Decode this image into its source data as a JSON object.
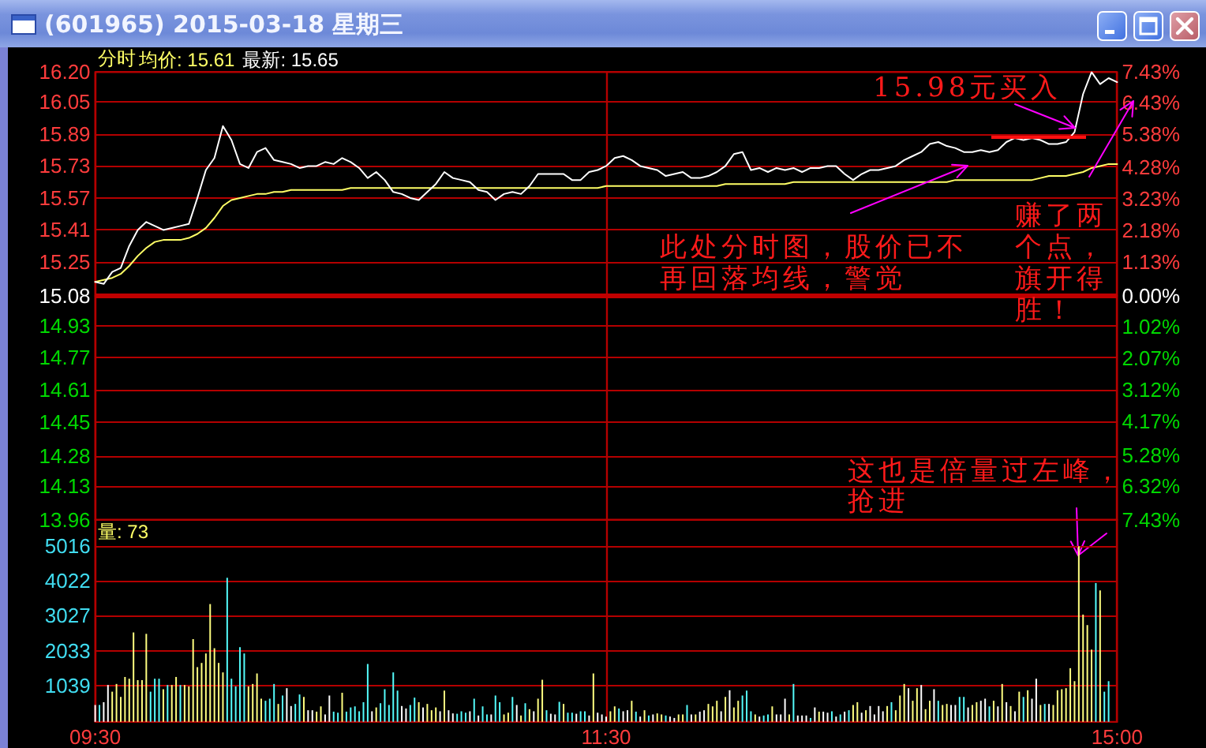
{
  "chart_data": [
    {
      "type": "line",
      "title": "(601965) 2015-03-18 星期三",
      "subtitle": "分时",
      "categories": [
        null,
        null,
        null,
        null,
        null,
        null,
        null,
        null,
        null,
        null,
        null,
        null,
        null,
        null,
        null,
        null,
        null,
        null,
        null,
        null,
        null,
        null,
        null,
        null,
        null,
        null,
        null,
        null,
        null,
        null,
        null,
        null,
        null,
        null,
        null,
        null,
        null,
        null,
        null,
        null,
        null,
        null,
        null,
        null,
        null,
        null,
        null,
        null,
        null,
        null,
        null,
        null,
        null,
        null,
        null,
        null,
        null,
        null,
        null,
        null,
        null,
        null,
        null,
        null,
        null,
        null,
        null,
        null,
        null,
        null,
        null,
        null,
        null,
        null,
        null,
        null,
        null,
        null,
        null,
        null,
        null,
        null,
        null,
        null,
        null,
        null,
        null,
        null,
        null,
        null,
        null,
        null,
        null,
        null,
        null,
        null,
        null,
        null,
        null,
        null,
        null,
        null,
        null,
        null,
        null,
        null,
        null,
        null,
        null,
        null,
        null,
        null,
        null,
        null,
        null,
        null,
        null,
        null,
        null,
        null,
        null
      ],
      "series": [
        {
          "name": "均价: 15.61",
          "color": "#ffff66",
          "values": [
            15.15,
            15.16,
            15.17,
            15.19,
            15.23,
            15.28,
            15.32,
            15.35,
            15.36,
            15.36,
            15.36,
            15.37,
            15.39,
            15.42,
            15.47,
            15.53,
            15.56,
            15.57,
            15.58,
            15.59,
            15.59,
            15.6,
            15.6,
            15.61,
            15.61,
            15.61,
            15.61,
            15.61,
            15.61,
            15.61,
            15.62,
            15.62,
            15.62,
            15.62,
            15.62,
            15.62,
            15.62,
            15.62,
            15.62,
            15.62,
            15.62,
            15.62,
            15.62,
            15.62,
            15.62,
            15.62,
            15.62,
            15.62,
            15.62,
            15.62,
            15.62,
            15.62,
            15.62,
            15.62,
            15.62,
            15.62,
            15.62,
            15.62,
            15.62,
            15.62,
            15.63,
            15.63,
            15.63,
            15.63,
            15.63,
            15.63,
            15.63,
            15.63,
            15.63,
            15.63,
            15.63,
            15.63,
            15.63,
            15.63,
            15.64,
            15.64,
            15.64,
            15.64,
            15.64,
            15.64,
            15.64,
            15.64,
            15.65,
            15.65,
            15.65,
            15.65,
            15.65,
            15.65,
            15.65,
            15.65,
            15.65,
            15.65,
            15.65,
            15.65,
            15.65,
            15.65,
            15.65,
            15.65,
            15.65,
            15.65,
            15.65,
            15.66,
            15.66,
            15.66,
            15.66,
            15.66,
            15.66,
            15.66,
            15.66,
            15.66,
            15.66,
            15.67,
            15.68,
            15.68,
            15.68,
            15.69,
            15.7,
            15.72,
            15.73,
            15.74,
            15.74
          ]
        },
        {
          "name": "最新: 15.65",
          "color": "#ffffff",
          "values": [
            15.15,
            15.14,
            15.2,
            15.22,
            15.33,
            15.41,
            15.45,
            15.43,
            15.41,
            15.42,
            15.43,
            15.44,
            15.57,
            15.71,
            15.77,
            15.93,
            15.86,
            15.74,
            15.72,
            15.8,
            15.82,
            15.76,
            15.75,
            15.74,
            15.72,
            15.73,
            15.73,
            15.75,
            15.74,
            15.77,
            15.75,
            15.72,
            15.67,
            15.7,
            15.66,
            15.6,
            15.59,
            15.57,
            15.56,
            15.6,
            15.64,
            15.7,
            15.67,
            15.66,
            15.65,
            15.61,
            15.6,
            15.56,
            15.59,
            15.6,
            15.59,
            15.63,
            15.69,
            15.69,
            15.69,
            15.69,
            15.66,
            15.66,
            15.7,
            15.71,
            15.73,
            15.77,
            15.78,
            15.76,
            15.73,
            15.72,
            15.71,
            15.68,
            15.69,
            15.7,
            15.67,
            15.67,
            15.68,
            15.7,
            15.73,
            15.79,
            15.8,
            15.71,
            15.72,
            15.7,
            15.72,
            15.71,
            15.72,
            15.7,
            15.72,
            15.72,
            15.73,
            15.73,
            15.69,
            15.66,
            15.69,
            15.71,
            15.71,
            15.72,
            15.73,
            15.76,
            15.78,
            15.8,
            15.84,
            15.85,
            15.83,
            15.82,
            15.8,
            15.8,
            15.81,
            15.8,
            15.81,
            15.85,
            15.87,
            15.86,
            15.87,
            15.86,
            15.84,
            15.84,
            15.85,
            15.9,
            16.09,
            16.2,
            16.14,
            16.17,
            16.15
          ]
        }
      ],
      "ylim": [
        13.96,
        16.2
      ],
      "yticks": [
        13.96,
        14.13,
        14.28,
        14.45,
        14.61,
        14.77,
        14.93,
        15.08,
        15.25,
        15.41,
        15.57,
        15.73,
        15.89,
        16.05,
        {
          "value": 16.2,
          "label": "16.20"
        }
      ],
      "y2lim": [
        -7.43,
        7.43
      ],
      "y2ticks": [
        {
          "value": -7.43,
          "label": "7.43%"
        },
        {
          "value": -6.32,
          "label": "6.32%"
        },
        {
          "value": -5.28,
          "label": "5.28%"
        },
        {
          "value": -4.17,
          "label": "4.17%"
        },
        {
          "value": -3.12,
          "label": "3.12%"
        },
        {
          "value": -2.07,
          "label": "2.07%"
        },
        {
          "value": -1.02,
          "label": "1.02%"
        },
        {
          "value": 0,
          "label": "0.00%"
        },
        {
          "value": 1.13,
          "label": "1.13%"
        },
        {
          "value": 2.18,
          "label": "2.18%"
        },
        {
          "value": 3.23,
          "label": "3.23%"
        },
        {
          "value": 4.28,
          "label": "4.28%"
        },
        {
          "value": 5.38,
          "label": "5.38%"
        },
        {
          "value": 6.43,
          "label": "6.43%"
        },
        {
          "value": 7.43,
          "label": "7.43%"
        }
      ],
      "ref_lines": [
        {
          "axis": "y",
          "value": 15.08,
          "color": "#c00000"
        }
      ],
      "grid": true,
      "legend": "top left",
      "tick_labels": "y",
      "annotations": [
        "15.98元买入",
        "此处分时图，股价已不再回落均线，警觉",
        "赚了两个点，旗开得胜！",
        "这也是倍量过左峰，抢进"
      ]
    },
    {
      "type": "bar",
      "title": "量: 73",
      "categories": [
        "09:30",
        null,
        null,
        null,
        null,
        null,
        null,
        null,
        null,
        null,
        null,
        null,
        null,
        null,
        null,
        null,
        null,
        null,
        null,
        null,
        null,
        null,
        null,
        null,
        null,
        null,
        null,
        null,
        null,
        null,
        null,
        null,
        null,
        null,
        null,
        null,
        null,
        null,
        null,
        null,
        null,
        null,
        null,
        null,
        null,
        null,
        null,
        null,
        null,
        null,
        null,
        null,
        null,
        null,
        null,
        null,
        null,
        null,
        null,
        null,
        null,
        null,
        null,
        null,
        null,
        null,
        null,
        null,
        null,
        null,
        null,
        null,
        null,
        null,
        null,
        null,
        null,
        null,
        null,
        null,
        null,
        null,
        null,
        null,
        null,
        null,
        null,
        null,
        null,
        null,
        null,
        null,
        null,
        null,
        null,
        null,
        null,
        null,
        null,
        null,
        null,
        null,
        null,
        null,
        null,
        null,
        null,
        null,
        null,
        null,
        null,
        null,
        null,
        null,
        null,
        null,
        null,
        null,
        null,
        null,
        "11:30",
        null,
        null,
        null,
        null,
        null,
        null,
        null,
        null,
        null,
        null,
        null,
        null,
        null,
        null,
        null,
        null,
        null,
        null,
        null,
        null,
        null,
        null,
        null,
        null,
        null,
        null,
        null,
        null,
        null,
        null,
        null,
        null,
        null,
        null,
        null,
        null,
        null,
        null,
        null,
        null,
        null,
        null,
        null,
        null,
        null,
        null,
        null,
        null,
        null,
        null,
        null,
        null,
        null,
        null,
        null,
        null,
        null,
        null,
        null,
        null,
        null,
        null,
        null,
        null,
        null,
        null,
        null,
        null,
        null,
        null,
        null,
        null,
        null,
        null,
        null,
        null,
        null,
        null,
        null,
        null,
        null,
        null,
        null,
        null,
        null,
        null,
        null,
        null,
        null,
        null,
        null,
        null,
        null,
        null,
        null,
        null,
        null,
        null,
        null,
        null,
        null,
        null,
        null,
        null,
        null,
        null,
        null,
        null,
        null,
        null,
        null,
        null,
        null,
        null,
        null,
        null,
        null,
        null,
        null,
        "15:00"
      ],
      "values": [
        480,
        480,
        560,
        1050,
        860,
        1080,
        710,
        1280,
        1230,
        2550,
        1190,
        1190,
        2510,
        860,
        1230,
        1230,
        930,
        1050,
        1050,
        1280,
        1050,
        1050,
        1010,
        2360,
        1560,
        1680,
        1950,
        3360,
        2100,
        1680,
        1410,
        4110,
        1230,
        1010,
        2130,
        1950,
        1010,
        1080,
        1380,
        660,
        600,
        660,
        1080,
        510,
        750,
        960,
        450,
        510,
        780,
        710,
        330,
        330,
        290,
        440,
        210,
        750,
        290,
        260,
        830,
        290,
        410,
        440,
        300,
        560,
        1650,
        300,
        410,
        530,
        930,
        480,
        1410,
        890,
        450,
        380,
        480,
        690,
        560,
        410,
        510,
        330,
        410,
        300,
        890,
        330,
        240,
        230,
        300,
        260,
        300,
        660,
        180,
        440,
        210,
        210,
        750,
        560,
        210,
        260,
        710,
        480,
        180,
        530,
        360,
        300,
        660,
        1200,
        330,
        230,
        210,
        570,
        510,
        260,
        260,
        230,
        300,
        300,
        180,
        1380,
        260,
        210,
        150,
        300,
        440,
        380,
        300,
        330,
        600,
        290,
        150,
        330,
        180,
        210,
        240,
        210,
        180,
        150,
        110,
        210,
        210,
        480,
        210,
        210,
        290,
        330,
        510,
        440,
        600,
        300,
        710,
        900,
        410,
        600,
        750,
        890,
        300,
        210,
        150,
        180,
        210,
        440,
        210,
        210,
        660,
        210,
        1080,
        180,
        180,
        180,
        110,
        410,
        290,
        290,
        260,
        300,
        150,
        210,
        290,
        330,
        480,
        560,
        260,
        330,
        450,
        210,
        450,
        300,
        450,
        560,
        330,
        750,
        1080,
        960,
        600,
        960,
        1050,
        360,
        600,
        930,
        600,
        480,
        510,
        480,
        480,
        710,
        710,
        410,
        480,
        560,
        600,
        660,
        440,
        600,
        440,
        1080,
        560,
        450,
        300,
        860,
        710,
        900,
        660,
        1230,
        480,
        510,
        510,
        480,
        900,
        930,
        960,
        1530,
        1160,
        5010,
        3060,
        2760,
        2060,
        3960,
        3750,
        860,
        1160,
        null,
        null
      ],
      "colors": [
        "#ffffff",
        "#54fcfc",
        "#ffffff",
        "#ffffff",
        "#ffff80",
        "#ffff80",
        "#ffff80",
        "#ffff80",
        "#ffff80",
        "#ffff80",
        "#ffff80",
        "#ffff80",
        "#ffff80",
        "#54fcfc",
        "#54fcfc",
        "#54fcfc",
        "#ffff80",
        "#54fcfc",
        "#ffff80",
        "#ffff80",
        "#54fcfc",
        "#ffff80",
        "#ffff80",
        "#ffff80",
        "#ffff80",
        "#ffff80",
        "#ffff80",
        "#ffff80",
        "#ffff80",
        "#ffff80",
        "#ffff80",
        "#54fcfc",
        "#54fcfc",
        "#54fcfc",
        "#54fcfc",
        "#54fcfc",
        "#ffff80",
        "#ffff80",
        "#ffff80",
        "#ffff80",
        "#54fcfc",
        "#54fcfc",
        "#54fcfc",
        "#ffff80",
        "#54fcfc",
        "#ffffff",
        "#ffffff",
        "#54fcfc",
        "#54fcfc",
        "#ffff80",
        "#ffffff",
        "#ffffff",
        "#ffff80",
        "#ffff80",
        "#ffffff",
        "#ffffff",
        "#54fcfc",
        "#54fcfc",
        "#ffff80",
        "#54fcfc",
        "#54fcfc",
        "#54fcfc",
        "#54fcfc",
        "#54fcfc",
        "#54fcfc",
        "#ffffff",
        "#ffff80",
        "#54fcfc",
        "#54fcfc",
        "#54fcfc",
        "#54fcfc",
        "#54fcfc",
        "#ffffff",
        "#ffffff",
        "#54fcfc",
        "#54fcfc",
        "#ffff80",
        "#ffffff",
        "#ffff80",
        "#ffff80",
        "#ffff80",
        "#ffffff",
        "#ffff80",
        "#ffffff",
        "#ffffff",
        "#54fcfc",
        "#54fcfc",
        "#54fcfc",
        "#ffffff",
        "#54fcfc",
        "#ffffff",
        "#54fcfc",
        "#54fcfc",
        "#ffffff",
        "#54fcfc",
        "#54fcfc",
        "#ffff80",
        "#ffff80",
        "#54fcfc",
        "#ffffff",
        "#ffff80",
        "#54fcfc",
        "#ffff80",
        "#ffffff",
        "#ffff80",
        "#ffff80",
        "#54fcfc",
        "#ffffff",
        "#ffffff",
        "#54fcfc",
        "#ffff80",
        "#54fcfc",
        "#54fcfc",
        "#ffffff",
        "#54fcfc",
        "#54fcfc",
        "#ffffff",
        "#ffff80",
        "#ffffff",
        "#ffffff",
        "#ffffff",
        "#ffff80",
        "#ffff80",
        "#54fcfc",
        "#ffffff",
        "#ffffff",
        "#ffff80",
        "#54fcfc",
        "#ffffff",
        "#ffff80",
        "#54fcfc",
        "#ffffff",
        "#ffff80",
        "#ffff80",
        "#54fcfc",
        "#ffffff",
        "#ffffff",
        "#ffff80",
        "#ffff80",
        "#54fcfc",
        "#ffffff",
        "#ffff80",
        "#ffffff",
        "#ffffff",
        "#ffff80",
        "#ffff80",
        "#ffff80",
        "#ffffff",
        "#ffff80",
        "#ffffff",
        "#ffff80",
        "#ffff80",
        "#54fcfc",
        "#54fcfc",
        "#54fcfc",
        "#ffff80",
        "#ffffff",
        "#54fcfc",
        "#54fcfc",
        "#ffff80",
        "#ffffff",
        "#ffffff",
        "#ffffff",
        "#ffff80",
        "#54fcfc",
        "#ffffff",
        "#ffffff",
        "#ffffff",
        "#54fcfc",
        "#ffffff",
        "#ffff80",
        "#ffffff",
        "#ffffff",
        "#54fcfc",
        "#ffffff",
        "#54fcfc",
        "#ffffff",
        "#54fcfc",
        "#ffff80",
        "#ffff80",
        "#ffffff",
        "#ffff80",
        "#ffffff",
        "#ffffff",
        "#ffffff",
        "#ffffff",
        "#ffff80",
        "#54fcfc",
        "#ffff80",
        "#ffff80",
        "#ffff80",
        "#ffffff",
        "#ffff80",
        "#ffff80",
        "#ffffff",
        "#ffff80",
        "#ffff80",
        "#ffffff",
        "#54fcfc",
        "#ffff80",
        "#ffff80",
        "#ffffff",
        "#ffffff",
        "#54fcfc",
        "#54fcfc",
        "#ffffff",
        "#ffff80",
        "#ffff80",
        "#ffffff",
        "#ffffff",
        "#54fcfc",
        "#ffff80",
        "#ffffff",
        "#ffff80",
        "#ffffff",
        "#ffff80",
        "#ffffff",
        "#ffff80",
        "#54fcfc",
        "#ffff80",
        "#ffffff",
        "#ffffff",
        "#ffff80",
        "#54fcfc",
        "#ffffff",
        "#ffff80",
        "#ffff80",
        "#ffff80",
        "#ffff80",
        "#ffff80",
        "#ffff80",
        "#ffff80",
        "#ffff80",
        "#ffff80",
        "#ffff80",
        "#54fcfc",
        "#ffff80",
        "#54fcfc",
        "#54fcfc",
        null,
        null
      ],
      "ylim": [
        0,
        5760
      ],
      "yticks": [
        1039,
        2033,
        3027,
        4022,
        5016
      ],
      "grid": true
    }
  ]
}
